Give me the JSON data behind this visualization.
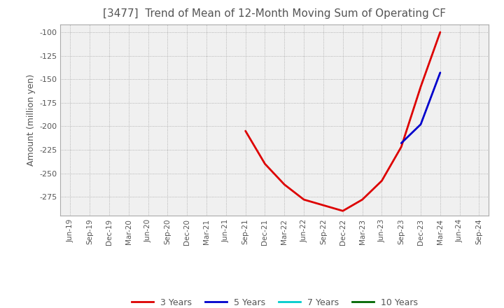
{
  "title": "[3477]  Trend of Mean of 12-Month Moving Sum of Operating CF",
  "ylabel": "Amount (million yen)",
  "background_color": "#ffffff",
  "plot_bg_color": "#f0f0f0",
  "grid_color": "#999999",
  "title_color": "#555555",
  "ylim": [
    -295,
    -92
  ],
  "yticks": [
    -275,
    -250,
    -225,
    -200,
    -175,
    -150,
    -125,
    -100
  ],
  "series": {
    "3years": {
      "color": "#dd0000",
      "label": "3 Years",
      "x": [
        "Sep-21",
        "Dec-21",
        "Mar-22",
        "Jun-22",
        "Sep-22",
        "Dec-22",
        "Mar-23",
        "Jun-23",
        "Sep-23",
        "Dec-23",
        "Mar-24"
      ],
      "y": [
        -205,
        -240,
        -262,
        -278,
        -284,
        -290,
        -278,
        -258,
        -222,
        -158,
        -100
      ]
    },
    "5years": {
      "color": "#0000cc",
      "label": "5 Years",
      "x": [
        "Sep-23",
        "Dec-23",
        "Mar-24"
      ],
      "y": [
        -218,
        -198,
        -143
      ]
    },
    "7years": {
      "color": "#00cccc",
      "label": "7 Years",
      "x": [],
      "y": []
    },
    "10years": {
      "color": "#006600",
      "label": "10 Years",
      "x": [],
      "y": []
    }
  },
  "xtick_labels": [
    "Jun-19",
    "Sep-19",
    "Dec-19",
    "Mar-20",
    "Jun-20",
    "Sep-20",
    "Dec-20",
    "Mar-21",
    "Jun-21",
    "Sep-21",
    "Dec-21",
    "Mar-22",
    "Jun-22",
    "Sep-22",
    "Dec-22",
    "Mar-23",
    "Jun-23",
    "Sep-23",
    "Dec-23",
    "Mar-24",
    "Jun-24",
    "Sep-24"
  ],
  "legend_entries": [
    "3 Years",
    "5 Years",
    "7 Years",
    "10 Years"
  ],
  "legend_colors": [
    "#dd0000",
    "#0000cc",
    "#00cccc",
    "#006600"
  ],
  "line_width": 2.0
}
